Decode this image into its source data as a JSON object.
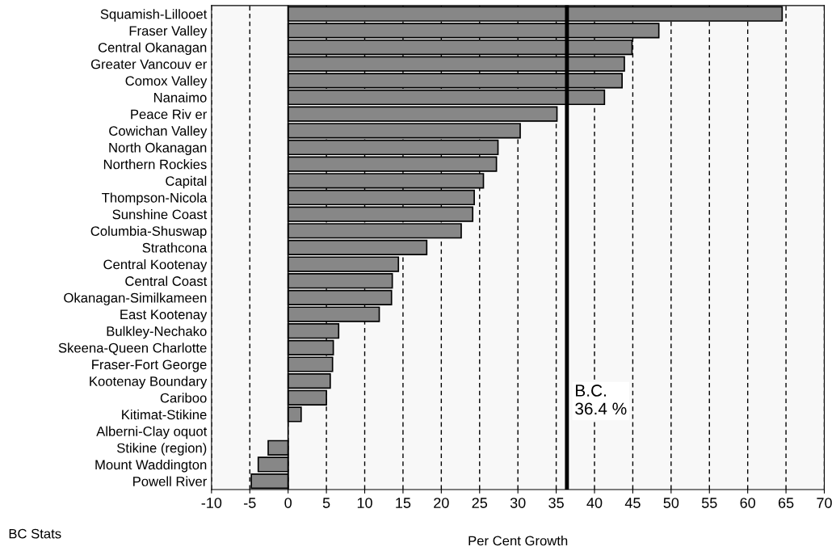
{
  "chart_data": {
    "type": "bar",
    "orientation": "horizontal",
    "xlabel": "Per Cent Growth",
    "categories": [
      "Squamish-Lillooet",
      "Fraser Valley",
      "Central Okanagan",
      "Greater Vancouv er",
      "Comox Valley",
      "Nanaimo",
      "Peace Riv er",
      "Cowichan Valley",
      "North Okanagan",
      "Northern Rockies",
      "Capital",
      "Thompson-Nicola",
      "Sunshine Coast",
      "Columbia-Shuswap",
      "Strathcona",
      "Central Kootenay",
      "Central Coast",
      "Okanagan-Similkameen",
      "East Kootenay",
      "Bulkley-Nechako",
      "Skeena-Queen Charlotte",
      "Fraser-Fort George",
      "Kootenay Boundary",
      "Cariboo",
      "Kitimat-Stikine",
      "Alberni-Clay oquot",
      "Stikine (region)",
      "Mount Waddington",
      "Powell River"
    ],
    "values": [
      64.5,
      48.4,
      44.9,
      43.9,
      43.6,
      41.3,
      35.1,
      30.3,
      27.4,
      27.2,
      25.5,
      24.3,
      24.1,
      22.6,
      18.1,
      14.4,
      13.6,
      13.5,
      11.9,
      6.6,
      5.9,
      5.8,
      5.5,
      5.0,
      1.7,
      null,
      -2.6,
      -3.9,
      -4.8
    ],
    "color": "#878787",
    "xlim": [
      -10,
      70
    ],
    "xticks": [
      -10,
      -5,
      0,
      5,
      10,
      15,
      20,
      25,
      30,
      35,
      40,
      45,
      50,
      55,
      60,
      65,
      70
    ],
    "grid": "x",
    "ref_lines": [
      {
        "axis": "x",
        "value": 0,
        "label": null,
        "color": "#000000",
        "line_style": "solid"
      },
      {
        "axis": "x",
        "value": 36.4,
        "label": "B.C.\n36.4 %",
        "color": "#000000",
        "line_style": "solid"
      }
    ],
    "annotations": [
      "BC Stats"
    ]
  }
}
